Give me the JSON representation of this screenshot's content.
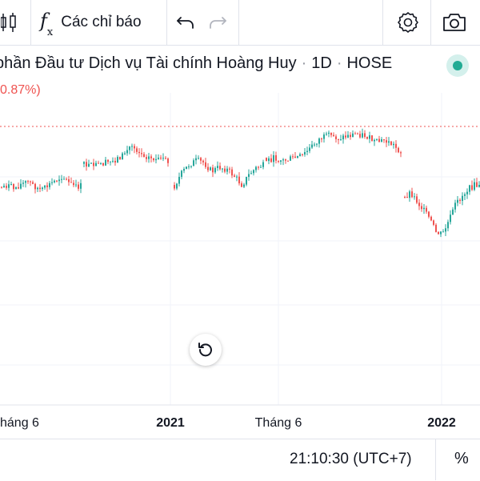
{
  "toolbar": {
    "indicators_label": "Các chỉ báo",
    "icons": [
      "candlestick-icon",
      "fx-icon",
      "undo-icon",
      "redo-icon",
      "settings-icon",
      "camera-icon"
    ]
  },
  "legend": {
    "title": "phần Đầu tư Dịch vụ Tài chính Hoàng Huy",
    "interval": "1D",
    "exchange": "HOSE",
    "change": "0.87%)"
  },
  "x_axis": {
    "labels": [
      "háng 6",
      "2021",
      "Tháng 6",
      "2022"
    ]
  },
  "status": {
    "time": "21:10:30 (UTC+7)",
    "percent_toggle": "%"
  },
  "colors": {
    "up": "#26a69a",
    "down": "#ef5350",
    "grid": "#f0f3fa",
    "price_line": "#ef5350",
    "live": "#22ab94"
  },
  "chart_data": {
    "type": "candlestick",
    "series": [
      {
        "segment": "mid-2020",
        "trend": [
          0.5,
          0.52,
          0.49,
          0.53,
          0.55,
          0.51,
          0.47,
          0.52,
          0.56,
          0.6,
          0.54,
          0.5,
          0.52
        ]
      },
      {
        "segment": "late-2020",
        "trend": [
          0.7,
          0.69,
          0.71,
          0.73,
          0.78,
          0.88,
          0.8,
          0.76,
          0.74,
          0.72
        ]
      },
      {
        "segment": "early-2021",
        "trend": [
          0.5,
          0.62,
          0.7,
          0.74,
          0.72,
          0.64,
          0.68,
          0.66,
          0.6,
          0.52,
          0.62,
          0.68,
          0.7
        ]
      },
      {
        "segment": "mid-2021",
        "trend": [
          0.74,
          0.76,
          0.74,
          0.76,
          0.78,
          0.86,
          0.94,
          0.96,
          0.94,
          0.96,
          0.98,
          0.96,
          0.9,
          0.92,
          0.88,
          0.8
        ]
      },
      {
        "segment": "late-2021",
        "trend": [
          0.4,
          0.46,
          0.38,
          0.3,
          0.22,
          0.1,
          0.08,
          0.2,
          0.34,
          0.42,
          0.48,
          0.52,
          0.5
        ]
      }
    ]
  }
}
